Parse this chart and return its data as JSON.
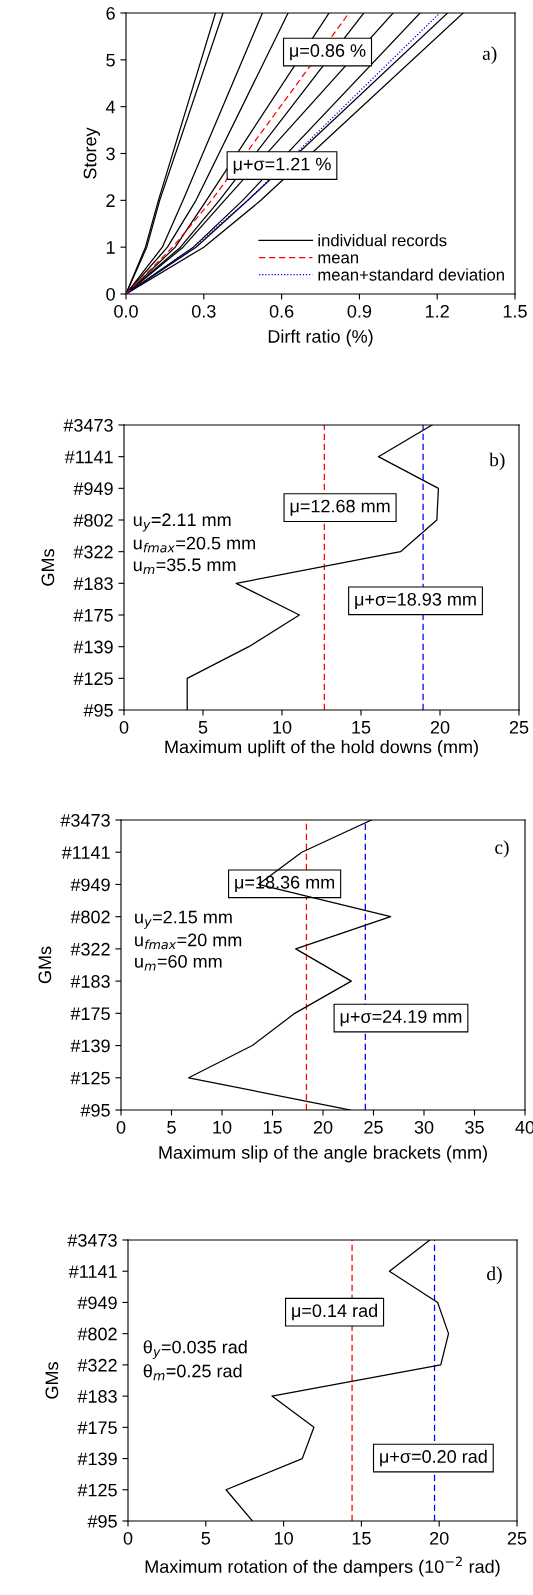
{
  "chart_data": [
    {
      "type": "line",
      "xlabel": "Dirft ratio (%)",
      "ylabel": "Storey",
      "xlim": [
        0,
        1.5
      ],
      "ylim": [
        0,
        6
      ],
      "xticks": [
        {
          "value": 0,
          "label": "0.0"
        },
        {
          "value": 0.3,
          "label": "0.3"
        },
        {
          "value": 0.6,
          "label": "0.6"
        },
        {
          "value": 0.9,
          "label": "0.9"
        },
        {
          "value": 1.2,
          "label": "1.2"
        },
        {
          "value": 1.5,
          "label": "1.5"
        }
      ],
      "yticks": [
        0,
        1,
        2,
        3,
        4,
        5,
        6
      ],
      "grid": false,
      "legend": "bottom right",
      "marker": "none",
      "series": [
        {
          "name": "individual records",
          "color": "#000000",
          "line_style": "solid",
          "x": [
            0,
            0.075,
            0.125,
            0.345
          ],
          "values": [
            0,
            1,
            2,
            6
          ]
        },
        {
          "color": "#000000",
          "line_style": "solid",
          "x": [
            0,
            0.08,
            0.13,
            0.374
          ],
          "values": [
            0,
            1,
            2,
            6
          ]
        },
        {
          "color": "#000000",
          "line_style": "solid",
          "x": [
            0,
            0.14,
            0.22,
            0.526
          ],
          "values": [
            0,
            1,
            2,
            6
          ]
        },
        {
          "color": "#000000",
          "line_style": "solid",
          "x": [
            0,
            0.16,
            0.27,
            0.625
          ],
          "values": [
            0,
            1,
            2,
            6
          ]
        },
        {
          "color": "#000000",
          "line_style": "solid",
          "x": [
            0,
            0.19,
            0.31,
            0.783
          ],
          "values": [
            0,
            1,
            2,
            6
          ]
        },
        {
          "color": "#000000",
          "line_style": "solid",
          "x": [
            0,
            0.21,
            0.36,
            0.917
          ],
          "values": [
            0,
            1,
            2,
            6
          ]
        },
        {
          "color": "#000000",
          "line_style": "solid",
          "x": [
            0,
            0.22,
            0.38,
            1.03
          ],
          "values": [
            0,
            1,
            2,
            6
          ]
        },
        {
          "color": "#000000",
          "line_style": "solid",
          "x": [
            0,
            0.26,
            0.45,
            1.134
          ],
          "values": [
            0,
            1,
            2,
            6
          ]
        },
        {
          "color": "#000000",
          "line_style": "solid",
          "x": [
            0,
            0.27,
            0.47,
            1.24
          ],
          "values": [
            0,
            1,
            2,
            6
          ]
        },
        {
          "color": "#000000",
          "line_style": "solid",
          "x": [
            0,
            0.3,
            0.52,
            1.3
          ],
          "values": [
            0,
            1,
            2,
            6
          ]
        },
        {
          "name": "mean",
          "color": "#ff0000",
          "line_style": "dashed",
          "x": [
            0,
            0.18,
            0.33,
            0.86
          ],
          "values": [
            0,
            1,
            2,
            6
          ]
        },
        {
          "name": "mean+standard deviation",
          "color": "#0000ff",
          "line_style": "dotted",
          "x": [
            0,
            0.26,
            0.47,
            1.21
          ],
          "values": [
            0,
            1,
            2,
            6
          ]
        }
      ],
      "annotations": [
        "μ=0.86 %",
        "μ+σ=1.21 %",
        "a)"
      ]
    },
    {
      "type": "line",
      "orientation": "horizontal",
      "xlabel": "Maximum uplift of the hold downs (mm)",
      "ylabel": "GMs",
      "categories": [
        "#3473",
        "#1141",
        "#949",
        "#802",
        "#322",
        "#183",
        "#175",
        "#139",
        "#125",
        "#95"
      ],
      "xlim": [
        0,
        25
      ],
      "xticks": [
        0,
        5,
        10,
        15,
        20,
        25
      ],
      "grid": false,
      "marker": "none",
      "series": [
        {
          "color": "#000000",
          "values": [
            19.5,
            16.1,
            19.9,
            19.8,
            17.5,
            7.1,
            11.1,
            7.9,
            4.0,
            4.0
          ]
        }
      ],
      "ref_lines": [
        {
          "axis": "x",
          "value": 12.68,
          "label": "μ=12.68 mm",
          "color": "#ff0000",
          "line_style": "dashed"
        },
        {
          "axis": "x",
          "value": 18.93,
          "label": "μ+σ=18.93 mm",
          "color": "#0000ff",
          "line_style": "dashed"
        }
      ],
      "annotations": [
        "u$_{y}$=2.11 mm",
        "u$_{fmax}$=20.5 mm",
        "u$_{m}$=35.5 mm",
        "b)"
      ]
    },
    {
      "type": "line",
      "orientation": "horizontal",
      "xlabel": "Maximum slip of the angle brackets (mm)",
      "ylabel": "GMs",
      "categories": [
        "#3473",
        "#1141",
        "#949",
        "#802",
        "#322",
        "#183",
        "#175",
        "#139",
        "#125",
        "#95"
      ],
      "xlim": [
        0,
        40
      ],
      "xticks": [
        0,
        5,
        10,
        15,
        20,
        25,
        30,
        35,
        40
      ],
      "grid": false,
      "marker": "none",
      "series": [
        {
          "color": "#000000",
          "values": [
            24.8,
            17.9,
            13.6,
            26.7,
            17.3,
            22.8,
            17.2,
            13.0,
            6.7,
            22.7
          ]
        }
      ],
      "ref_lines": [
        {
          "axis": "x",
          "value": 18.36,
          "label": "μ=18.36 mm",
          "color": "#ff0000",
          "line_style": "dashed"
        },
        {
          "axis": "x",
          "value": 24.19,
          "label": "μ+σ=24.19 mm",
          "color": "#0000ff",
          "line_style": "dashed"
        }
      ],
      "annotations": [
        "u$_{y}$=2.15 mm",
        "u$_{fmax}$=20 mm",
        "u$_{m}$=60 mm",
        "c)"
      ]
    },
    {
      "type": "line",
      "orientation": "horizontal",
      "xlabel": "Maximum rotation of the dampers (10$^{−2}$ rad)",
      "ylabel": "GMs",
      "categories": [
        "#3473",
        "#1141",
        "#949",
        "#802",
        "#322",
        "#183",
        "#175",
        "#139",
        "#125",
        "#95"
      ],
      "xlim": [
        0,
        25
      ],
      "xticks": [
        0,
        5,
        10,
        15,
        20,
        25
      ],
      "grid": false,
      "marker": "none",
      "series": [
        {
          "color": "#000000",
          "values": [
            19.4,
            16.8,
            19.9,
            20.6,
            20.1,
            9.25,
            11.95,
            11.2,
            6.3,
            8.0
          ]
        }
      ],
      "ref_lines": [
        {
          "axis": "x",
          "value": 14.4,
          "color": "#ff0000",
          "line_style": "dashed"
        },
        {
          "axis": "x",
          "value": 19.7,
          "color": "#0000ff",
          "line_style": "dashed"
        }
      ],
      "annotations": [
        "θ$_{y}$=0.035 rad",
        "θ$_{m}$=0.25 rad",
        "d)",
        "μ=0.14 rad",
        "μ+σ=0.20 rad"
      ]
    }
  ]
}
